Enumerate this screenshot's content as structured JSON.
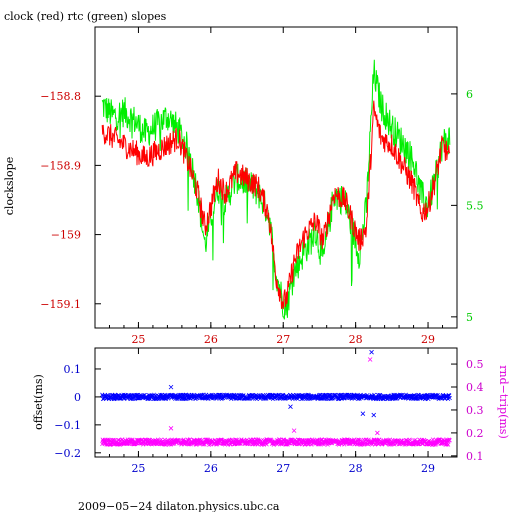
{
  "chart_data": [
    {
      "type": "line",
      "title": "clock (red) rtc (green) slopes",
      "ylabel": "clockslope",
      "x_ticks": [
        25,
        26,
        27,
        28,
        29
      ],
      "xlim": [
        24.4,
        29.4
      ],
      "y_left": {
        "ticks": [
          -158.8,
          -158.9,
          -159,
          -159.1
        ],
        "ylim": [
          -159.135,
          -158.7
        ],
        "color": "#cc0000"
      },
      "y_right": {
        "ticks": [
          5,
          5.5,
          6
        ],
        "ylim": [
          4.95,
          6.3
        ],
        "color": "#00cc00"
      },
      "series": [
        {
          "name": "clock",
          "color": "#ff0000",
          "axis": "left",
          "x": [
            24.5,
            24.65,
            24.8,
            24.95,
            25.1,
            25.25,
            25.4,
            25.55,
            25.7,
            25.82,
            25.92,
            26.0,
            26.1,
            26.2,
            26.35,
            26.5,
            26.65,
            26.8,
            26.9,
            27.0,
            27.05,
            27.15,
            27.3,
            27.45,
            27.55,
            27.7,
            27.85,
            27.95,
            28.05,
            28.15,
            28.25,
            28.35,
            28.5,
            28.65,
            28.8,
            28.9,
            29.0,
            29.1,
            29.2,
            29.3
          ],
          "values": [
            -158.85,
            -158.86,
            -158.87,
            -158.88,
            -158.89,
            -158.88,
            -158.87,
            -158.86,
            -158.9,
            -158.94,
            -158.99,
            -158.96,
            -158.92,
            -158.94,
            -158.91,
            -158.92,
            -158.93,
            -158.97,
            -159.06,
            -159.1,
            -159.09,
            -159.04,
            -159.0,
            -158.98,
            -159.01,
            -158.94,
            -158.95,
            -158.98,
            -159.01,
            -158.99,
            -158.82,
            -158.86,
            -158.87,
            -158.9,
            -158.93,
            -158.97,
            -158.96,
            -158.92,
            -158.87,
            -158.89
          ]
        },
        {
          "name": "rtc",
          "color": "#00ee00",
          "axis": "right",
          "x": [
            24.5,
            24.65,
            24.8,
            24.95,
            25.1,
            25.25,
            25.4,
            25.55,
            25.7,
            25.82,
            25.92,
            26.0,
            26.1,
            26.2,
            26.35,
            26.5,
            26.65,
            26.8,
            26.9,
            27.0,
            27.05,
            27.15,
            27.3,
            27.45,
            27.55,
            27.7,
            27.85,
            27.95,
            28.05,
            28.15,
            28.25,
            28.35,
            28.5,
            28.65,
            28.8,
            28.9,
            29.0,
            29.1,
            29.2,
            29.3
          ],
          "values": [
            5.95,
            5.9,
            5.92,
            5.88,
            5.82,
            5.86,
            5.9,
            5.84,
            5.74,
            5.55,
            5.32,
            5.45,
            5.58,
            5.52,
            5.62,
            5.6,
            5.56,
            5.46,
            5.2,
            5.06,
            5.05,
            5.2,
            5.3,
            5.38,
            5.25,
            5.55,
            5.52,
            5.4,
            5.28,
            5.5,
            6.1,
            5.95,
            5.85,
            5.78,
            5.7,
            5.55,
            5.5,
            5.62,
            5.78,
            5.8
          ]
        }
      ]
    },
    {
      "type": "scatter",
      "ylabel_left": "offset(ms)",
      "ylabel_right": "rnd−trip(ms)",
      "x_ticks": [
        25,
        26,
        27,
        28,
        29
      ],
      "xlim": [
        24.4,
        29.4
      ],
      "y_left": {
        "ticks": [
          0.1,
          0,
          -0.1,
          -0.2
        ],
        "ylim": [
          -0.215,
          0.175
        ],
        "color": "#0000cc"
      },
      "y_right": {
        "ticks": [
          0.1,
          0.2,
          0.3,
          0.4,
          0.5
        ],
        "ylim": [
          0.095,
          0.57
        ],
        "color": "#cc00cc"
      },
      "series": [
        {
          "name": "offset",
          "color": "#0000ff",
          "axis": "left",
          "x_range": [
            24.5,
            29.3
          ],
          "baseline": 0.0,
          "outliers": [
            {
              "x": 25.45,
              "y": 0.035
            },
            {
              "x": 27.1,
              "y": -0.035
            },
            {
              "x": 28.1,
              "y": -0.06
            },
            {
              "x": 28.25,
              "y": -0.065
            },
            {
              "x": 28.22,
              "y": 0.16
            }
          ]
        },
        {
          "name": "rnd-trip",
          "color": "#ff00ff",
          "axis": "right",
          "x_range": [
            24.5,
            29.3
          ],
          "baseline": 0.16,
          "outliers": [
            {
              "x": 25.45,
              "y": 0.22
            },
            {
              "x": 27.15,
              "y": 0.21
            },
            {
              "x": 28.2,
              "y": 0.52
            },
            {
              "x": 28.3,
              "y": 0.2
            }
          ]
        }
      ]
    }
  ],
  "footer": "2009−05−24 dilaton.physics.ubc.ca"
}
